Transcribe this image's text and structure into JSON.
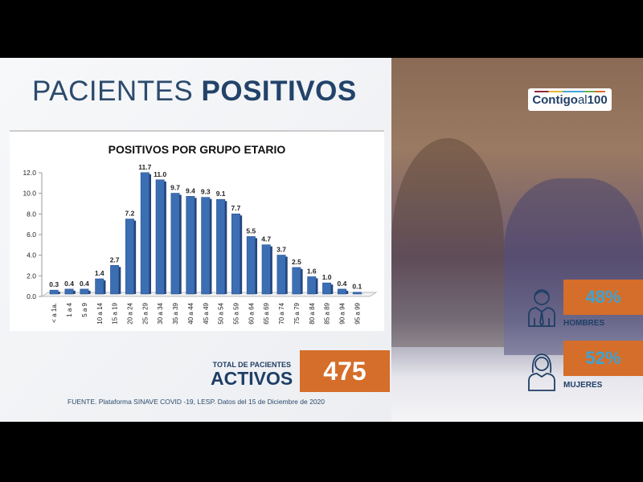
{
  "header": {
    "title_light": "PACIENTES ",
    "title_bold": "POSITIVOS"
  },
  "chart_data": {
    "type": "bar",
    "title": "POSITIVOS POR GRUPO ETARIO",
    "categories": [
      "< a 1a.",
      "1 a 4",
      "5 a 9",
      "10 a 14",
      "15 a 19",
      "20 a 24",
      "25 a 29",
      "30 a 34",
      "35 a 39",
      "40 a 44",
      "45 a 49",
      "50 a 54",
      "55 a 59",
      "60 a 64",
      "65 a 69",
      "70 a 74",
      "75 a 79",
      "80 a 84",
      "85 a 89",
      "90 a 94",
      "95 a 99"
    ],
    "values": [
      0.3,
      0.4,
      0.4,
      1.4,
      2.7,
      7.2,
      11.7,
      11.0,
      9.7,
      9.4,
      9.3,
      9.1,
      7.7,
      5.5,
      4.7,
      3.7,
      2.5,
      1.6,
      1.0,
      0.4,
      0.1
    ],
    "value_labels": [
      "0.3",
      "0.4",
      "0.4",
      "1.4",
      "2.7",
      "7.2",
      "11.7",
      "11.0",
      "9.7",
      "9.4",
      "9.3",
      "9.1",
      "7.7",
      "5.5",
      "4.7",
      "3.7",
      "2.5",
      "1.6",
      "1.0",
      "0.4",
      "0.1"
    ],
    "yticks": [
      "0.0",
      "2.0",
      "4.0",
      "6.0",
      "8.0",
      "10.0",
      "12.0"
    ],
    "ylim": [
      0,
      12
    ],
    "xlabel": "",
    "ylabel": "",
    "grid": false,
    "bar_color": "#3c6eb4"
  },
  "total": {
    "label_small": "TOTAL DE PACIENTES",
    "label_big": "ACTIVOS",
    "value": "475"
  },
  "source": "FUENTE. Plataforma SINAVE COVID -19, LESP. Datos del 15 de Diciembre de 2020",
  "logo": {
    "part1": "Contigo",
    "part2": "al",
    "part3": "100"
  },
  "gender": [
    {
      "percent": "48%",
      "label": "HOMBRES",
      "icon": "man-icon"
    },
    {
      "percent": "52%",
      "label": "MUJERES",
      "icon": "woman-icon"
    }
  ],
  "colors": {
    "accent_orange": "#d56e2a",
    "navy": "#1f3e66",
    "percent_blue": "#3aa4d6"
  }
}
